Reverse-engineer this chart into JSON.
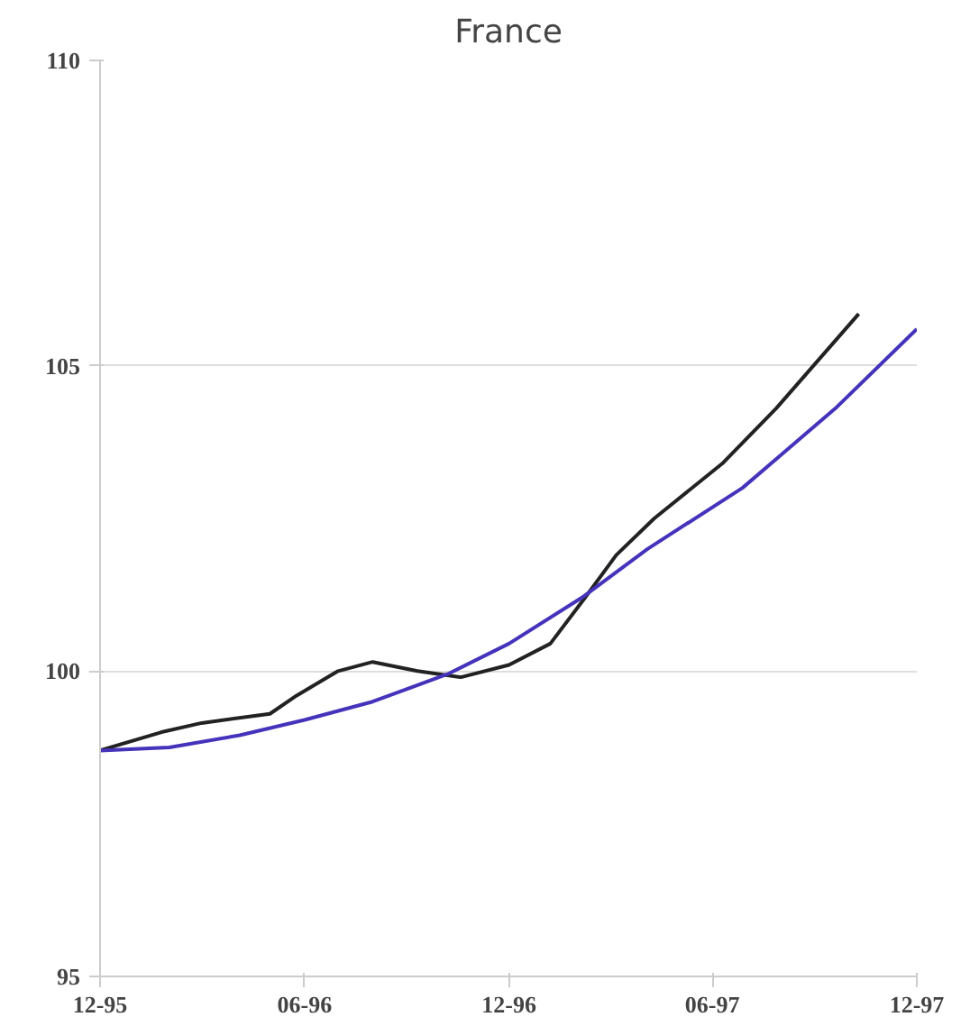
{
  "chart_data": {
    "type": "line",
    "title": "France",
    "xlim": [
      "1995-12-01",
      "1997-12-01"
    ],
    "xticks": [
      {
        "value": "1995-12-01",
        "label": "12-95"
      },
      {
        "value": "1996-06-01",
        "label": "06-96"
      },
      {
        "value": "1996-12-01",
        "label": "12-96"
      },
      {
        "value": "1997-06-01",
        "label": "06-97"
      },
      {
        "value": "1997-12-01",
        "label": "12-97"
      }
    ],
    "ylim": [
      95,
      110
    ],
    "yticks": [
      95,
      100,
      105,
      110
    ],
    "grid": "y",
    "series": [
      {
        "color": "#222222",
        "x": [
          "1995-12-01",
          "1996-01-25",
          "1996-03-01",
          "1996-05-01",
          "1996-05-25",
          "1996-07-01",
          "1996-08-01",
          "1996-09-10",
          "1996-10-19",
          "1996-12-01",
          "1997-01-07",
          "1997-02-07",
          "1997-03-07",
          "1997-04-10",
          "1997-06-10",
          "1997-07-28",
          "1997-10-10"
        ],
        "values": [
          98.7,
          99.0,
          99.15,
          99.3,
          99.6,
          100.0,
          100.15,
          100.0,
          99.9,
          100.1,
          100.45,
          101.2,
          101.9,
          102.5,
          103.4,
          104.3,
          105.85
        ]
      },
      {
        "color": "#4433bb",
        "x": [
          "1995-12-01",
          "1996-02-01",
          "1996-04-04",
          "1996-06-01",
          "1996-08-01",
          "1996-10-07",
          "1996-12-01",
          "1997-02-04",
          "1997-04-04",
          "1997-06-28",
          "1997-09-19",
          "1997-12-01"
        ],
        "values": [
          98.7,
          98.75,
          98.95,
          99.2,
          99.5,
          99.95,
          100.45,
          101.2,
          102.0,
          103.0,
          104.3,
          105.6
        ]
      }
    ]
  }
}
